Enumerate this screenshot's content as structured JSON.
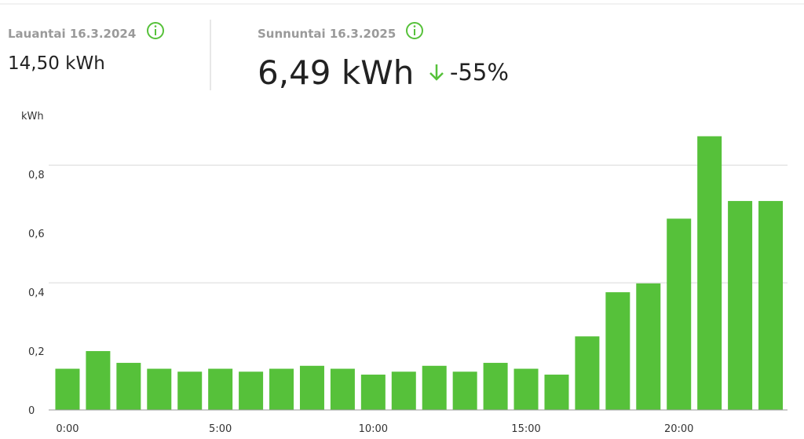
{
  "header": {
    "previous": {
      "date": "Lauantai 16.3.2024",
      "value": "14,50 kWh"
    },
    "current": {
      "date": "Sunnuntai 16.3.2025",
      "value": "6,49 kWh",
      "change": "-55%"
    }
  },
  "chart_data": {
    "type": "bar",
    "y_label": "kWh",
    "color": "#56c13a",
    "categories": [
      "0:00",
      null,
      null,
      null,
      null,
      "5:00",
      null,
      null,
      null,
      null,
      "10:00",
      null,
      null,
      null,
      null,
      "15:00",
      null,
      null,
      null,
      null,
      "20:00",
      null,
      null,
      null
    ],
    "values": [
      0.14,
      0.2,
      0.16,
      0.14,
      0.13,
      0.14,
      0.13,
      0.14,
      0.15,
      0.14,
      0.12,
      0.13,
      0.15,
      0.13,
      0.16,
      0.14,
      0.12,
      0.25,
      0.4,
      0.43,
      0.65,
      0.93,
      0.71,
      0.71
    ],
    "ylim": [
      0,
      0.95
    ],
    "yticks": [
      0,
      {
        "value": 0.2,
        "label": "0,2"
      },
      {
        "value": 0.4,
        "label": "0,4"
      },
      {
        "value": 0.6,
        "label": "0,6"
      },
      {
        "value": 0.8,
        "label": "0,8"
      }
    ],
    "grid": true
  }
}
